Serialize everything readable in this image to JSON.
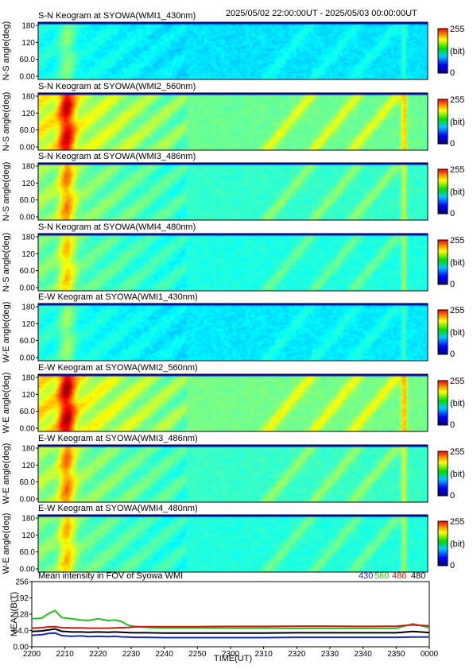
{
  "header": {
    "time_range": "2025/05/02 22:00:00UT - 2025/05/03 00:00:00UT"
  },
  "colors": {
    "wl430": "#1a2ab8",
    "wl560": "#22c21f",
    "wl486": "#d01818",
    "wl480": "#000000"
  },
  "colorbar": {
    "max_label": "255",
    "unit_label": "(bit)",
    "min_label": "0"
  },
  "keograms": [
    {
      "title": "S-N Keogram at SYOWA(WMI1_430nm)",
      "ylabel": "N-S angle(deg)",
      "intensity": 0.35,
      "ticks": [
        "180",
        "120",
        "60.0",
        "0.00"
      ]
    },
    {
      "title": "S-N Keogram at SYOWA(WMI2_560nm)",
      "ylabel": "N-S angle(deg)",
      "intensity": 0.95,
      "ticks": [
        "180",
        "120",
        "60.0",
        "0.00"
      ]
    },
    {
      "title": "S-N Keogram at SYOWA(WMI3_486nm)",
      "ylabel": "N-S angle(deg)",
      "intensity": 0.7,
      "ticks": [
        "180",
        "120",
        "60.0",
        "0.00"
      ]
    },
    {
      "title": "S-N Keogram at SYOWA(WMI4_480nm)",
      "ylabel": "N-S angle(deg)",
      "intensity": 0.6,
      "ticks": [
        "180",
        "120",
        "60.0",
        "0.00"
      ]
    },
    {
      "title": "E-W Keogram at SYOWA(WMI1_430nm)",
      "ylabel": "W-E angle(deg)",
      "intensity": 0.38,
      "ticks": [
        "180",
        "120",
        "60.0",
        "0.00"
      ]
    },
    {
      "title": "E-W Keogram at SYOWA(WMI2_560nm)",
      "ylabel": "W-E angle(deg)",
      "intensity": 1.0,
      "ticks": [
        "180",
        "120",
        "60.0",
        "0.00"
      ]
    },
    {
      "title": "E-W Keogram at SYOWA(WMI3_486nm)",
      "ylabel": "W-E angle(deg)",
      "intensity": 0.72,
      "ticks": [
        "180",
        "120",
        "60.0",
        "0.00"
      ]
    },
    {
      "title": "E-W Keogram at SYOWA(WMI4_480nm)",
      "ylabel": "W-E angle(deg)",
      "intensity": 0.62,
      "ticks": [
        "180",
        "120",
        "60.0",
        "0.00"
      ]
    }
  ],
  "chart_data": {
    "type": "line",
    "title": "Mean intensity in FOV of Syowa WMI",
    "xlabel": "TIME(UT)",
    "ylabel": "MEAN(BIT)",
    "ylim": [
      0,
      256
    ],
    "yticks": [
      "256",
      "192",
      "128",
      "64.0",
      "0.00"
    ],
    "ytick_values": [
      256,
      192,
      128,
      64,
      0
    ],
    "xticks": [
      "2200",
      "2210",
      "2220",
      "2230",
      "2240",
      "2250",
      "2300",
      "2310",
      "2320",
      "2330",
      "2340",
      "2350",
      "0000"
    ],
    "x_minutes": [
      0,
      3,
      5,
      7,
      9,
      12,
      15,
      17,
      20,
      23,
      25,
      27,
      29,
      31,
      35,
      40,
      50,
      60,
      70,
      80,
      90,
      100,
      110,
      115,
      120
    ],
    "series": [
      {
        "name": "430",
        "color": "#1a2ab8",
        "values": [
          45,
          47,
          52,
          54,
          44,
          41,
          43,
          40,
          41,
          40,
          41,
          39,
          38,
          37,
          37,
          36,
          36,
          36,
          36,
          37,
          37,
          37,
          37,
          38,
          38
        ]
      },
      {
        "name": "560",
        "color": "#22c21f",
        "values": [
          110,
          112,
          130,
          142,
          115,
          110,
          105,
          103,
          110,
          103,
          105,
          100,
          85,
          80,
          76,
          74,
          74,
          73,
          73,
          72,
          72,
          72,
          72,
          90,
          75
        ]
      },
      {
        "name": "486",
        "color": "#d01818",
        "values": [
          73,
          75,
          78,
          79,
          75,
          74,
          74,
          73,
          73,
          73,
          74,
          75,
          76,
          78,
          79,
          79,
          79,
          80,
          80,
          81,
          81,
          80,
          81,
          86,
          82
        ]
      },
      {
        "name": "480",
        "color": "#000000",
        "values": [
          60,
          62,
          66,
          70,
          61,
          58,
          58,
          57,
          58,
          57,
          58,
          57,
          56,
          55,
          55,
          54,
          54,
          54,
          54,
          55,
          55,
          55,
          55,
          60,
          56
        ]
      }
    ]
  }
}
